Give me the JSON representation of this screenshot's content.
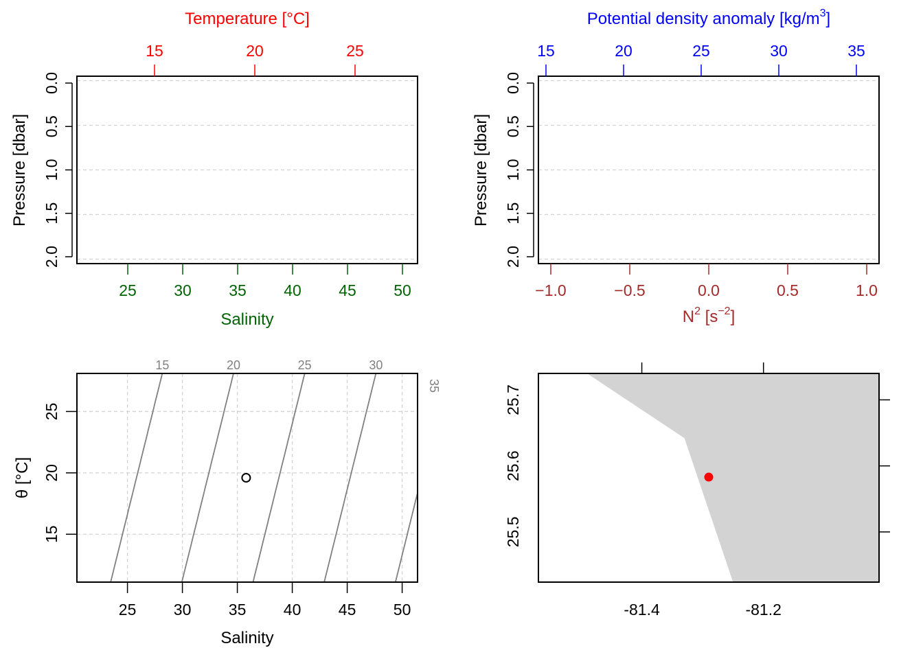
{
  "colors": {
    "temperature": "#ff0000",
    "salinity": "#006400",
    "density": "#0000ff",
    "n2": "#a52a2a",
    "axis": "#000000",
    "grid": "#d3d3d3",
    "isopycnal": "#808080",
    "land": "#d3d3d3",
    "station": "#ff0000"
  },
  "chart_data": [
    {
      "id": "profile-ts",
      "type": "line",
      "ylabel": "Pressure [dbar]",
      "ylim": [
        2.05,
        -0.05
      ],
      "yticks": [
        "0.0",
        "0.5",
        "1.0",
        "1.5",
        "2.0"
      ],
      "grid": true,
      "top_axis": {
        "label": "Temperature [°C]",
        "ticks": [
          "15",
          "20",
          "25"
        ]
      },
      "bottom_axis": {
        "label": "Salinity",
        "ticks": [
          "25",
          "30",
          "35",
          "40",
          "45",
          "50"
        ]
      },
      "series": []
    },
    {
      "id": "profile-density-n2",
      "type": "line",
      "ylabel": "Pressure [dbar]",
      "ylim": [
        2.05,
        -0.05
      ],
      "yticks": [
        "0.0",
        "0.5",
        "1.0",
        "1.5",
        "2.0"
      ],
      "grid": true,
      "top_axis": {
        "label": "Potential density anomaly [kg/m",
        "label_sup": "3",
        "label_end": "]",
        "ticks": [
          "15",
          "20",
          "25",
          "30",
          "35"
        ]
      },
      "bottom_axis": {
        "label": "N",
        "label_sup": "2",
        "label_mid": " [s",
        "label_sup2": "−2",
        "label_end": "]",
        "ticks": [
          "−1.0",
          "−0.5",
          "0.0",
          "0.5",
          "1.0"
        ]
      },
      "series": []
    },
    {
      "id": "ts-diagram",
      "type": "scatter",
      "xlabel": "Salinity",
      "ylabel": "θ [°C]",
      "xlim": [
        20.4,
        51.4
      ],
      "ylim": [
        11.1,
        28.1
      ],
      "xticks": [
        "25",
        "30",
        "35",
        "40",
        "45",
        "50"
      ],
      "yticks": [
        "15",
        "20",
        "25"
      ],
      "grid": true,
      "isopycnal_labels": [
        "15",
        "20",
        "25",
        "30",
        "35"
      ],
      "points": [
        {
          "x": 35.8,
          "y": 19.6
        }
      ]
    },
    {
      "id": "station-map",
      "type": "scatter",
      "xlim": [
        -81.57,
        -81.01
      ],
      "ylim": [
        25.424,
        25.74
      ],
      "xticks": [
        "-81.4",
        "-81.2"
      ],
      "yticks": [
        "25.5",
        "25.6",
        "25.7"
      ],
      "land": [
        [
          -81.49,
          25.74
        ],
        [
          -81.33,
          25.642
        ],
        [
          -81.25,
          25.424
        ],
        [
          -81.01,
          25.424
        ],
        [
          -81.01,
          25.74
        ]
      ],
      "points": [
        {
          "x": -81.29,
          "y": 25.583
        }
      ]
    }
  ]
}
